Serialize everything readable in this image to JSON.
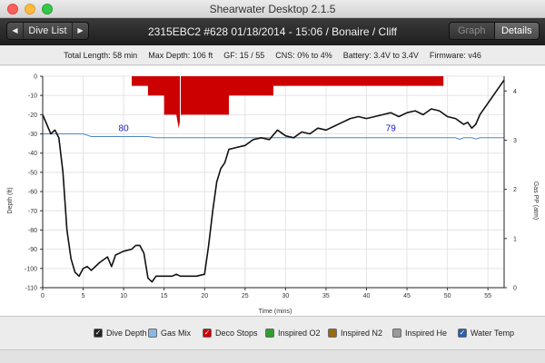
{
  "window": {
    "title": "Shearwater Desktop 2.1.5"
  },
  "toolbar": {
    "prev_icon": "left-triangle-icon",
    "dive_list_label": "Dive List",
    "next_icon": "right-triangle-icon",
    "dive_title": "2315EBC2 #628 01/18/2014 - 15:06  / Bonaire / Cliff",
    "graph_label": "Graph",
    "details_label": "Details"
  },
  "info": {
    "total_length": "Total Length: 58 min",
    "max_depth": "Max Depth: 106 ft",
    "gf": "GF: 15 / 55",
    "cns": "CNS: 0% to 4%",
    "battery": "Battery: 3.4V to 3.4V",
    "firmware": "Firmware: v46"
  },
  "legend": {
    "items": [
      {
        "label": "Dive Depth",
        "checked": true,
        "color": "#222222"
      },
      {
        "label": "Gas Mix",
        "checked": false,
        "color": "#8ab8e6"
      },
      {
        "label": "Deco Stops",
        "checked": true,
        "color": "#cc0000"
      },
      {
        "label": "Inspired O2",
        "checked": false,
        "color": "#2e9e2e"
      },
      {
        "label": "Inspired N2",
        "checked": false,
        "color": "#9a6a10"
      },
      {
        "label": "Inspired He",
        "checked": false,
        "color": "#9a9a9a"
      },
      {
        "label": "Water Temp",
        "checked": true,
        "color": "#2a5fb0"
      }
    ]
  },
  "chart_data": {
    "type": "line",
    "xlabel": "Time (mins)",
    "ylabel": "Depth (ft)",
    "y2label": "Gas PP (atm)",
    "xlim": [
      0,
      57
    ],
    "ylim": [
      -110,
      0
    ],
    "y2lim": [
      0,
      4.3
    ],
    "xticks": [
      0,
      5,
      10,
      15,
      20,
      25,
      30,
      35,
      40,
      45,
      50,
      55
    ],
    "yticks": [
      0,
      -10,
      -20,
      -30,
      -40,
      -50,
      -60,
      -70,
      -80,
      -90,
      -100,
      -110
    ],
    "y2ticks": [
      0,
      1,
      2,
      3,
      4
    ],
    "grid": true,
    "colors": {
      "depth": "#111111",
      "temp": "#4a86c8",
      "deco": "#cc0000",
      "temp_label": "#1a1acc"
    },
    "series": [
      {
        "name": "Dive Depth",
        "x": [
          0,
          0.5,
          1,
          1.5,
          2,
          2.5,
          3,
          3.5,
          4,
          4.5,
          5,
          5.5,
          6,
          7,
          8,
          8.5,
          9,
          10,
          11,
          11.5,
          12,
          12.5,
          13,
          13.5,
          14,
          15,
          16,
          16.5,
          17,
          18,
          19,
          20,
          20.5,
          21,
          21.5,
          22,
          22.5,
          23,
          24,
          25,
          26,
          27,
          28,
          29,
          30,
          31,
          32,
          33,
          34,
          35,
          36,
          37,
          38,
          39,
          40,
          41,
          42,
          43,
          44,
          45,
          46,
          47,
          48,
          49,
          50,
          51,
          52,
          52.5,
          53,
          53.5,
          54,
          55,
          56,
          57
        ],
        "y": [
          -20,
          -25,
          -30,
          -28,
          -32,
          -50,
          -80,
          -95,
          -102,
          -104,
          -100,
          -99,
          -101,
          -97,
          -94,
          -99,
          -93,
          -91,
          -90,
          -88,
          -88,
          -92,
          -105,
          -107,
          -104,
          -104,
          -104,
          -103,
          -104,
          -104,
          -104,
          -103,
          -88,
          -70,
          -55,
          -48,
          -45,
          -38,
          -37,
          -36,
          -33,
          -32,
          -33,
          -28,
          -31,
          -32,
          -29,
          -30,
          -27,
          -28,
          -26,
          -24,
          -22,
          -21,
          -22,
          -21,
          -20,
          -19,
          -21,
          -19,
          -18,
          -20,
          -17,
          -18,
          -21,
          -22,
          -25,
          -24,
          -27,
          -25,
          -20,
          -14,
          -8,
          -2
        ]
      },
      {
        "name": "Water Temp",
        "x": [
          0,
          5,
          6,
          13,
          14,
          15,
          17,
          17.1,
          21,
          23,
          24,
          49,
          51,
          51.5,
          52,
          53,
          53.5,
          54,
          57
        ],
        "y": [
          80,
          80,
          79.3,
          79.3,
          79,
          79,
          79,
          79,
          79,
          79,
          79,
          79,
          79,
          78.6,
          79,
          79,
          78.7,
          79,
          79
        ]
      }
    ],
    "temp_scale": {
      "value_at_minus_30ft": 80,
      "value_at_minus_37ft": 76.5
    },
    "temp_labels": [
      {
        "time": 10,
        "text": "80"
      },
      {
        "time": 43,
        "text": "79"
      }
    ],
    "deco_stops": {
      "x": [
        11,
        11,
        13,
        13,
        15,
        15,
        16.5,
        16.8,
        17.1,
        17.4,
        23,
        23,
        28.5,
        28.5,
        49.5,
        49.5
      ],
      "y": [
        0,
        -5,
        -5,
        -10,
        -10,
        -20,
        -20,
        -27,
        -20,
        -20,
        -20,
        -10,
        -10,
        -5,
        -5,
        0
      ],
      "marker_time": 17
    }
  }
}
